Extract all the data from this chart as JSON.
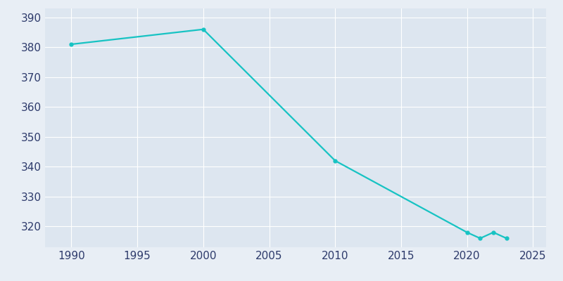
{
  "years": [
    1990,
    2000,
    2010,
    2020,
    2021,
    2022,
    2023
  ],
  "population": [
    381,
    386,
    342,
    318,
    316,
    318,
    316
  ],
  "line_color": "#17c3c3",
  "marker": "o",
  "marker_size": 3.5,
  "line_width": 1.6,
  "figure_background_color": "#e8eef5",
  "plot_background_color": "#dde6f0",
  "grid_color": "#ffffff",
  "tick_label_color": "#2d3a6b",
  "xlim": [
    1988,
    2026
  ],
  "ylim": [
    313,
    393
  ],
  "yticks": [
    320,
    330,
    340,
    350,
    360,
    370,
    380,
    390
  ],
  "xticks": [
    1990,
    1995,
    2000,
    2005,
    2010,
    2015,
    2020,
    2025
  ],
  "xlabel": "",
  "ylabel": ""
}
